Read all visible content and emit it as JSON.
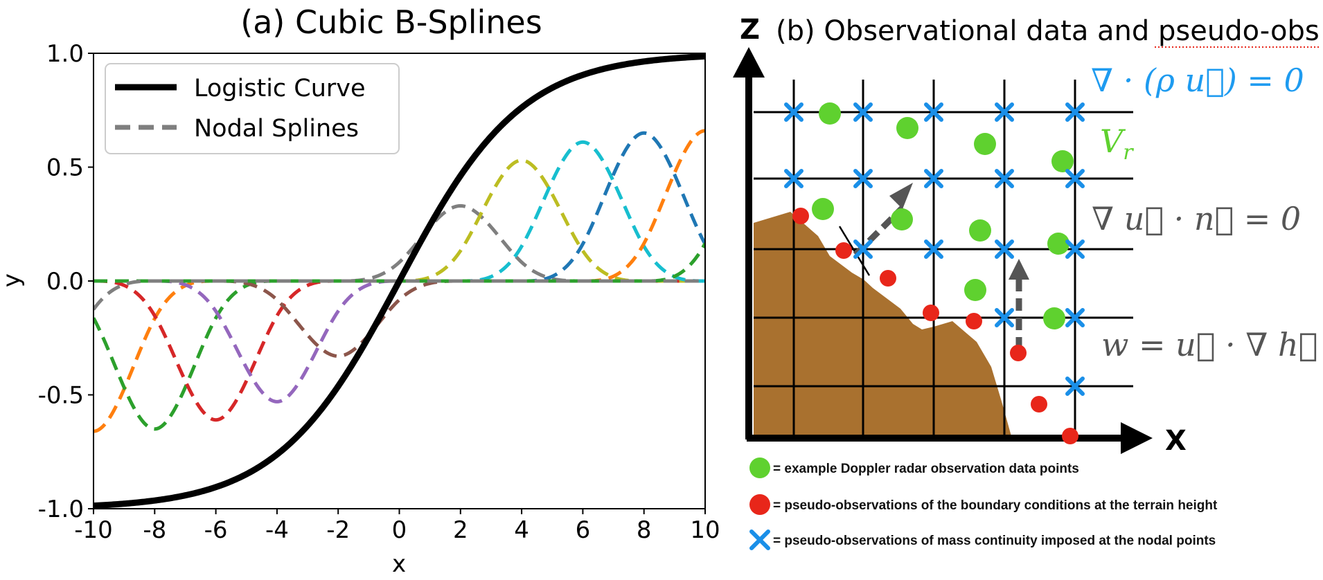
{
  "left": {
    "title": "(a) Cubic B-Splines",
    "xlabel": "x",
    "ylabel": "y",
    "xticks": [
      "-10",
      "-8",
      "-6",
      "-4",
      "-2",
      "0",
      "2",
      "4",
      "6",
      "8",
      "10"
    ],
    "yticks": [
      "1.0",
      "0.5",
      "0.0",
      "-0.5",
      "-1.0"
    ],
    "legend": {
      "logistic": "Logistic Curve",
      "splines": "Nodal Splines"
    }
  },
  "chart_data": {
    "type": "line",
    "title": "(a) Cubic B-Splines",
    "xlabel": "x",
    "ylabel": "y",
    "xlim": [
      -10,
      10
    ],
    "ylim": [
      -1,
      1
    ],
    "legend_position": "top-left",
    "logistic": {
      "name": "Logistic Curve",
      "color": "#000000",
      "function": "tanh(x/4)"
    },
    "spline_width": 2,
    "nodal_splines": [
      {
        "center": -10,
        "amplitude": -0.66,
        "color": "#ff7f0e"
      },
      {
        "center": -8,
        "amplitude": -0.65,
        "color": "#2ca02c"
      },
      {
        "center": -6,
        "amplitude": -0.61,
        "color": "#d62728"
      },
      {
        "center": -4,
        "amplitude": -0.53,
        "color": "#9467bd"
      },
      {
        "center": -2,
        "amplitude": -0.33,
        "color": "#8c564b"
      },
      {
        "center": 2,
        "amplitude": 0.33,
        "color": "#7f7f7f"
      },
      {
        "center": 4,
        "amplitude": 0.53,
        "color": "#bcbd22"
      },
      {
        "center": 6,
        "amplitude": 0.61,
        "color": "#17becf"
      },
      {
        "center": 8,
        "amplitude": 0.65,
        "color": "#1f77b4"
      },
      {
        "center": 10,
        "amplitude": 0.66,
        "color": "#ff7f0e"
      },
      {
        "center": 12,
        "amplitude": 0.66,
        "color": "#2ca02c"
      },
      {
        "center": -12,
        "amplitude": -0.5,
        "color": "#7f7f7f"
      }
    ]
  },
  "right": {
    "title": "(b) Observational data and pseudo-obs",
    "z_label": "Z",
    "x_label": "X",
    "eq_mass": "∇ · (ρ u⃗) = 0",
    "eq_vr": "V",
    "eq_vr_sub": "r",
    "eq_boundary": "∇ u⃗ · n⃗ = 0",
    "eq_w": "w = u⃗ · ∇ h⃗",
    "colors": {
      "doppler": "#5fd12f",
      "pseudo_boundary": "#e8261a",
      "mass_continuity": "#1a8fe8",
      "terrain": "#a9712f",
      "eq_mass": "#1e9bf0",
      "eq_vr": "#5fd12f",
      "eq_gray": "#555555"
    },
    "key": [
      {
        "symbol": "green-dot",
        "text": "= example Doppler radar observation data points"
      },
      {
        "symbol": "red-dot",
        "text": "= pseudo-observations of the boundary conditions at the terrain height"
      },
      {
        "symbol": "blue-x",
        "text": "= pseudo-observations of mass continuity imposed at the nodal points"
      }
    ]
  }
}
